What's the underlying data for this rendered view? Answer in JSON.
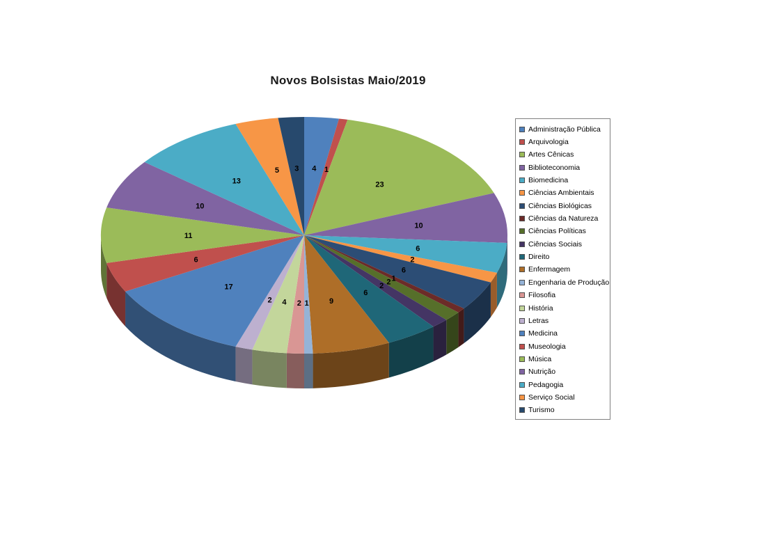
{
  "chart_data": {
    "type": "pie",
    "style": "3d",
    "title": "Novos Bolsistas Maio/2019",
    "legend_position": "right",
    "data_labels": "values",
    "start_angle_deg": 0,
    "direction": "clockwise",
    "categories": [
      "Administração Pública",
      "Arquivologia",
      "Artes Cênicas",
      "Biblioteconomia",
      "Biomedicina",
      "Ciências Ambientais",
      "Ciências Biológicas",
      "Ciências da Natureza",
      "Ciências Políticas",
      "Ciências Sociais",
      "Direito",
      "Enfermagem",
      "Engenharia de Produção",
      "Filosofia",
      "História",
      "Letras",
      "Medicina",
      "Museologia",
      "Música",
      "Nutrição",
      "Pedagogia",
      "Serviço Social",
      "Turismo"
    ],
    "values": [
      4,
      1,
      23,
      10,
      6,
      2,
      6,
      1,
      2,
      2,
      6,
      9,
      1,
      2,
      4,
      2,
      17,
      6,
      11,
      10,
      13,
      5,
      3
    ],
    "colors": [
      "#4F81BD",
      "#C0504D",
      "#9BBB59",
      "#8064A2",
      "#4BACC6",
      "#F79646",
      "#2C4D75",
      "#6C2B28",
      "#566F2A",
      "#443564",
      "#1F6778",
      "#AE6E28",
      "#95B3D7",
      "#D99694",
      "#C3D69B",
      "#BDB0CF",
      "#4F81BD",
      "#C0504D",
      "#9BBB59",
      "#8064A2",
      "#4BACC6",
      "#F79646",
      "#27496D"
    ]
  }
}
